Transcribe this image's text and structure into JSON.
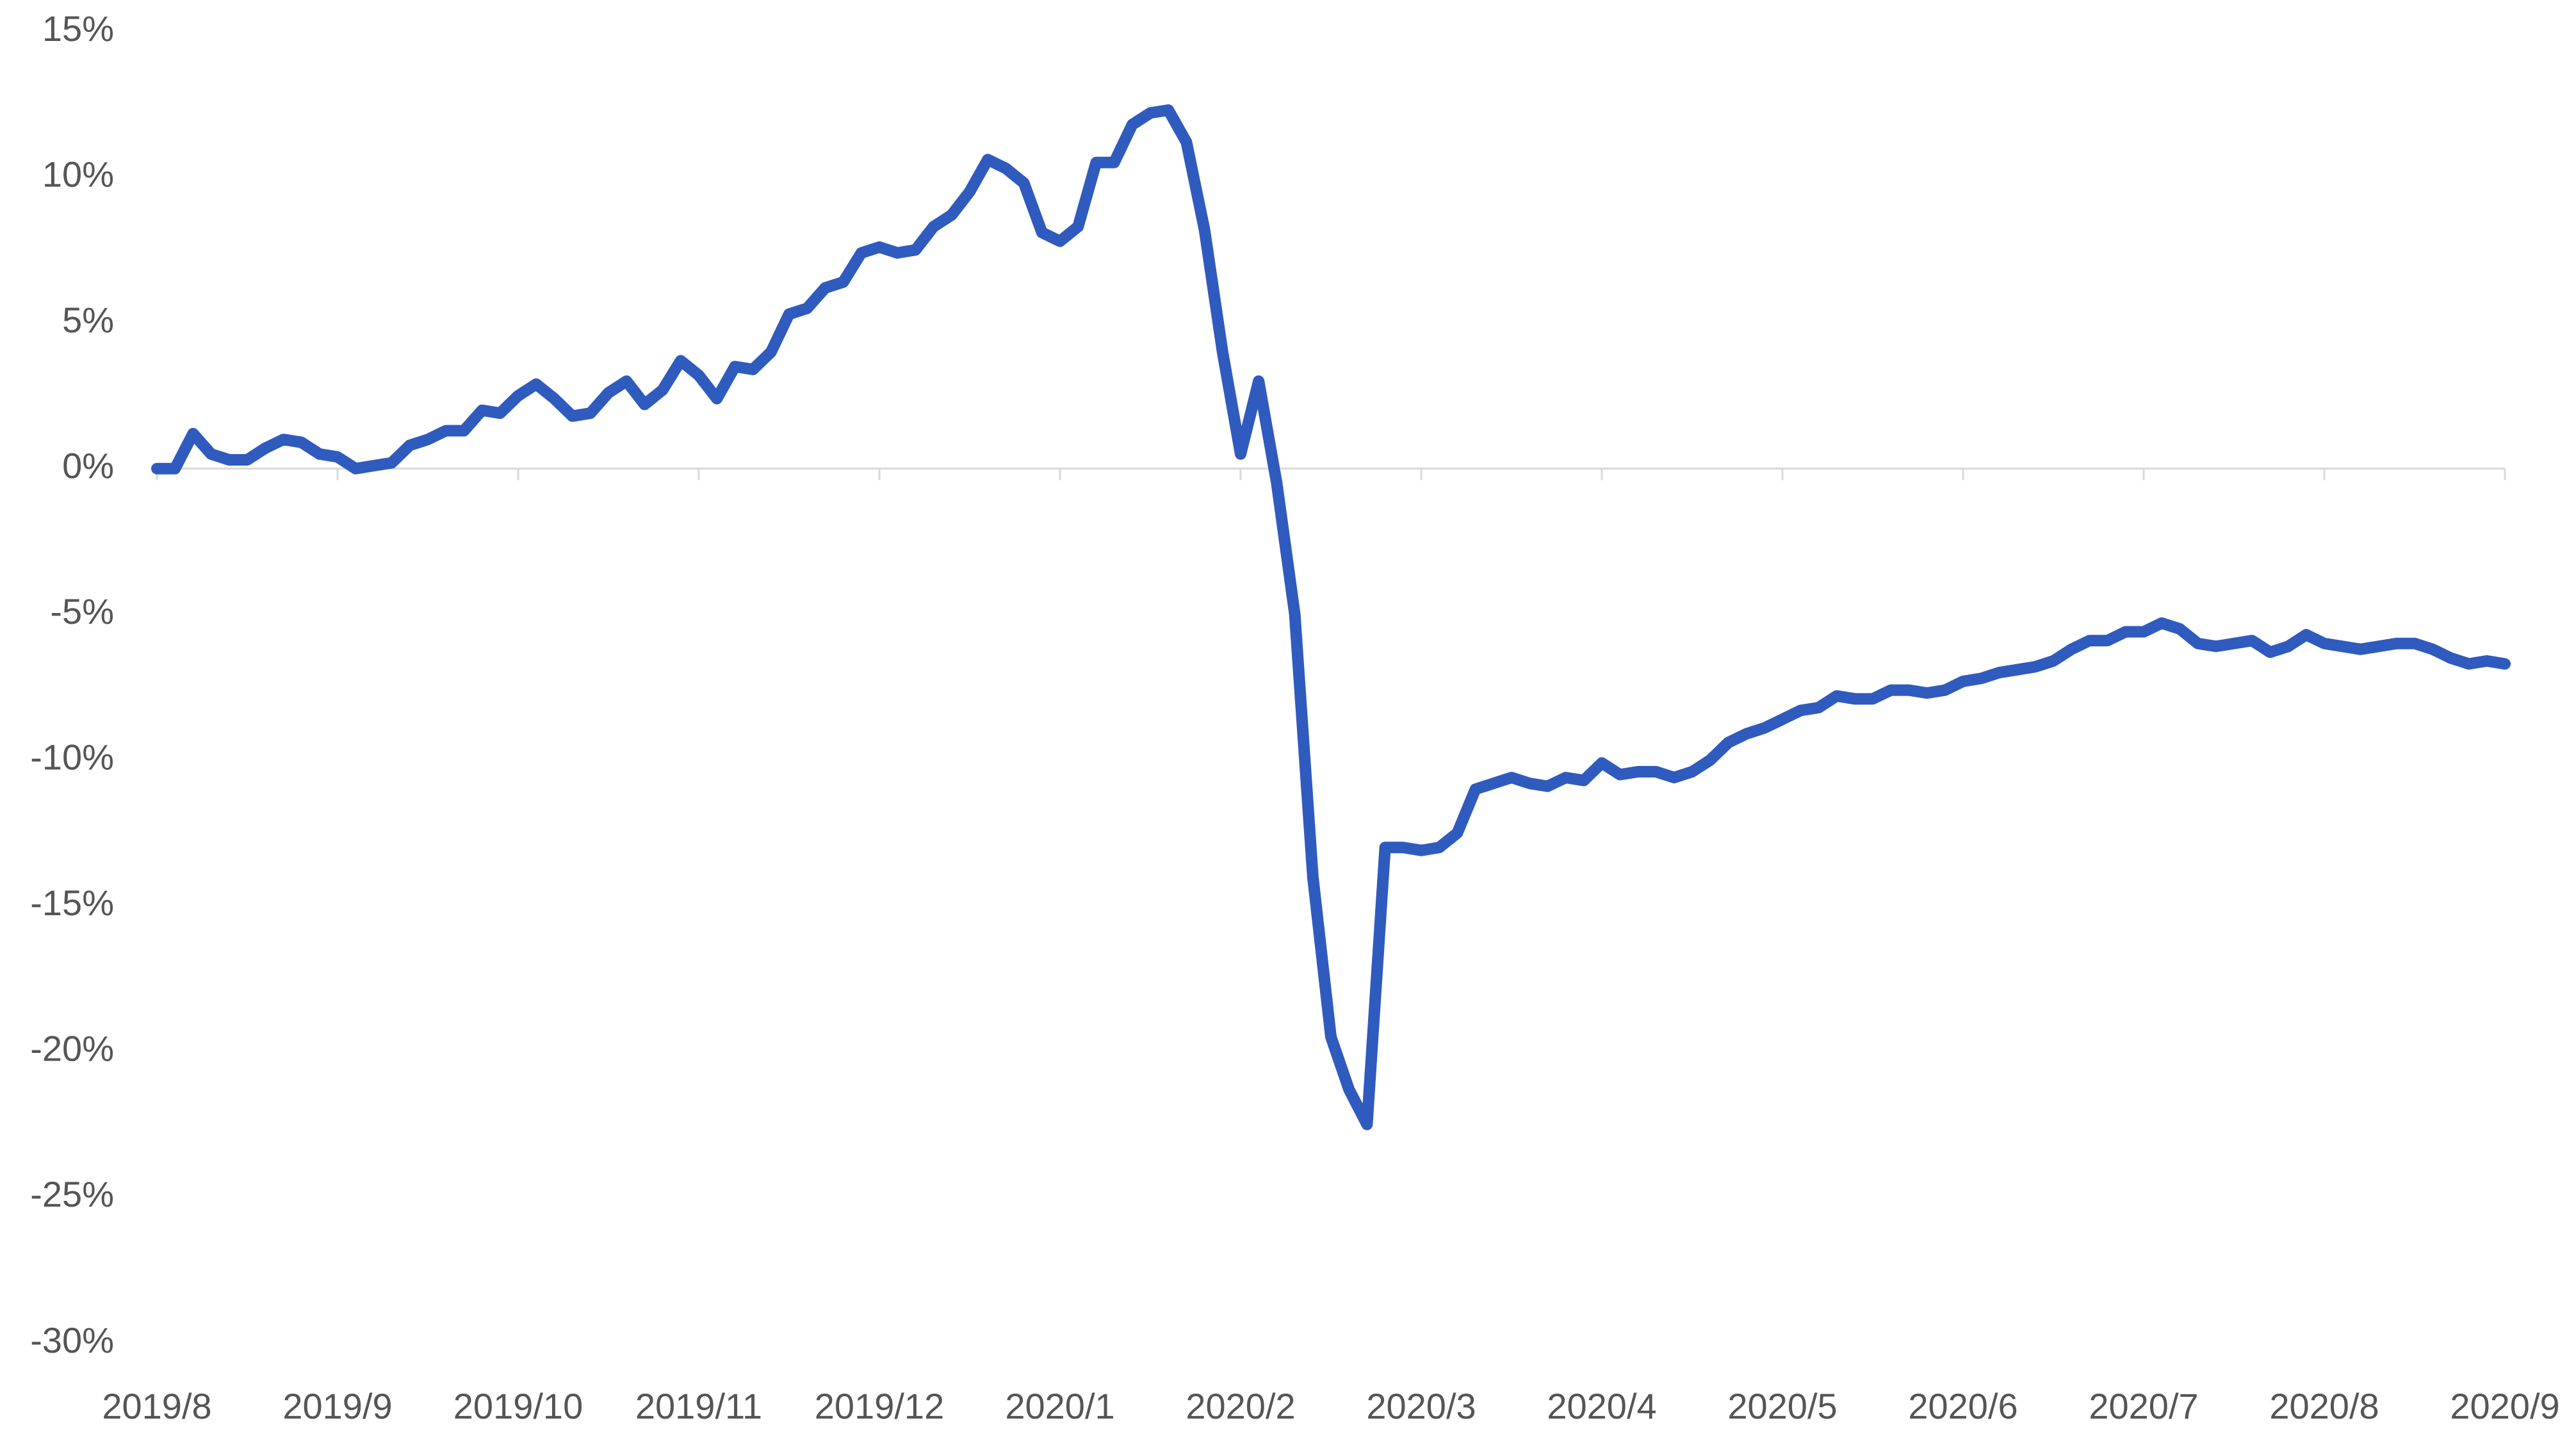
{
  "chart_data": {
    "type": "line",
    "color": "#2f5bbf",
    "categories": [
      "2019/8",
      null,
      null,
      null,
      null,
      null,
      null,
      null,
      null,
      null,
      "2019/9",
      null,
      null,
      null,
      null,
      null,
      null,
      null,
      null,
      null,
      "2019/10",
      null,
      null,
      null,
      null,
      null,
      null,
      null,
      null,
      null,
      "2019/11",
      null,
      null,
      null,
      null,
      null,
      null,
      null,
      null,
      null,
      "2019/12",
      null,
      null,
      null,
      null,
      null,
      null,
      null,
      null,
      null,
      "2020/1",
      null,
      null,
      null,
      null,
      null,
      null,
      null,
      null,
      null,
      "2020/2",
      null,
      null,
      null,
      null,
      null,
      null,
      null,
      null,
      null,
      "2020/3",
      null,
      null,
      null,
      null,
      null,
      null,
      null,
      null,
      null,
      "2020/4",
      null,
      null,
      null,
      null,
      null,
      null,
      null,
      null,
      null,
      "2020/5",
      null,
      null,
      null,
      null,
      null,
      null,
      null,
      null,
      null,
      "2020/6",
      null,
      null,
      null,
      null,
      null,
      null,
      null,
      null,
      null,
      "2020/7",
      null,
      null,
      null,
      null,
      null,
      null,
      null,
      null,
      null,
      "2020/8",
      null,
      null,
      null,
      null,
      null,
      null,
      null,
      null,
      null,
      "2020/9"
    ],
    "values": [
      0,
      0,
      1.2,
      0.5,
      0.3,
      0.3,
      0.7,
      1.0,
      0.9,
      0.5,
      0.4,
      0.0,
      0.1,
      0.2,
      0.8,
      1.0,
      1.3,
      1.3,
      2.0,
      1.9,
      2.5,
      2.9,
      2.4,
      1.8,
      1.9,
      2.6,
      3.0,
      2.2,
      2.7,
      3.7,
      3.2,
      2.4,
      3.5,
      3.4,
      4.0,
      5.3,
      5.5,
      6.2,
      6.4,
      7.4,
      7.6,
      7.4,
      7.5,
      8.3,
      8.7,
      9.5,
      10.6,
      10.3,
      9.8,
      8.1,
      7.8,
      8.3,
      10.5,
      10.5,
      11.8,
      12.2,
      12.3,
      11.2,
      8.2,
      4.0,
      0.5,
      3.0,
      -0.5,
      -5.0,
      -14.0,
      -19.5,
      -21.3,
      -22.5,
      -13.0,
      -13.0,
      -13.1,
      -13.0,
      -12.5,
      -11.0,
      -10.8,
      -10.6,
      -10.8,
      -10.9,
      -10.6,
      -10.7,
      -10.1,
      -10.5,
      -10.4,
      -10.4,
      -10.6,
      -10.4,
      -10.0,
      -9.4,
      -9.1,
      -8.9,
      -8.6,
      -8.3,
      -8.2,
      -7.8,
      -7.9,
      -7.9,
      -7.6,
      -7.6,
      -7.7,
      -7.6,
      -7.3,
      -7.2,
      -7.0,
      -6.9,
      -6.8,
      -6.6,
      -6.2,
      -5.9,
      -5.9,
      -5.6,
      -5.6,
      -5.3,
      -5.5,
      -6.0,
      -6.1,
      -6.0,
      -5.9,
      -6.3,
      -6.1,
      -5.7,
      -6.0,
      -6.1,
      -6.2,
      -6.1,
      -6.0,
      -6.0,
      -6.2,
      -6.5,
      -6.7,
      -6.6,
      -6.7
    ],
    "ylim": [
      -30,
      15
    ],
    "yticks": [
      {
        "value": -30,
        "label": "-30%"
      },
      {
        "value": -25,
        "label": "-25%"
      },
      {
        "value": -20,
        "label": "-20%"
      },
      {
        "value": -15,
        "label": "-15%"
      },
      {
        "value": -10,
        "label": "-10%"
      },
      {
        "value": -5,
        "label": "-5%"
      },
      {
        "value": 0,
        "label": "0%"
      },
      {
        "value": 5,
        "label": "5%"
      },
      {
        "value": 10,
        "label": "10%"
      },
      {
        "value": 15,
        "label": "15%"
      }
    ]
  }
}
